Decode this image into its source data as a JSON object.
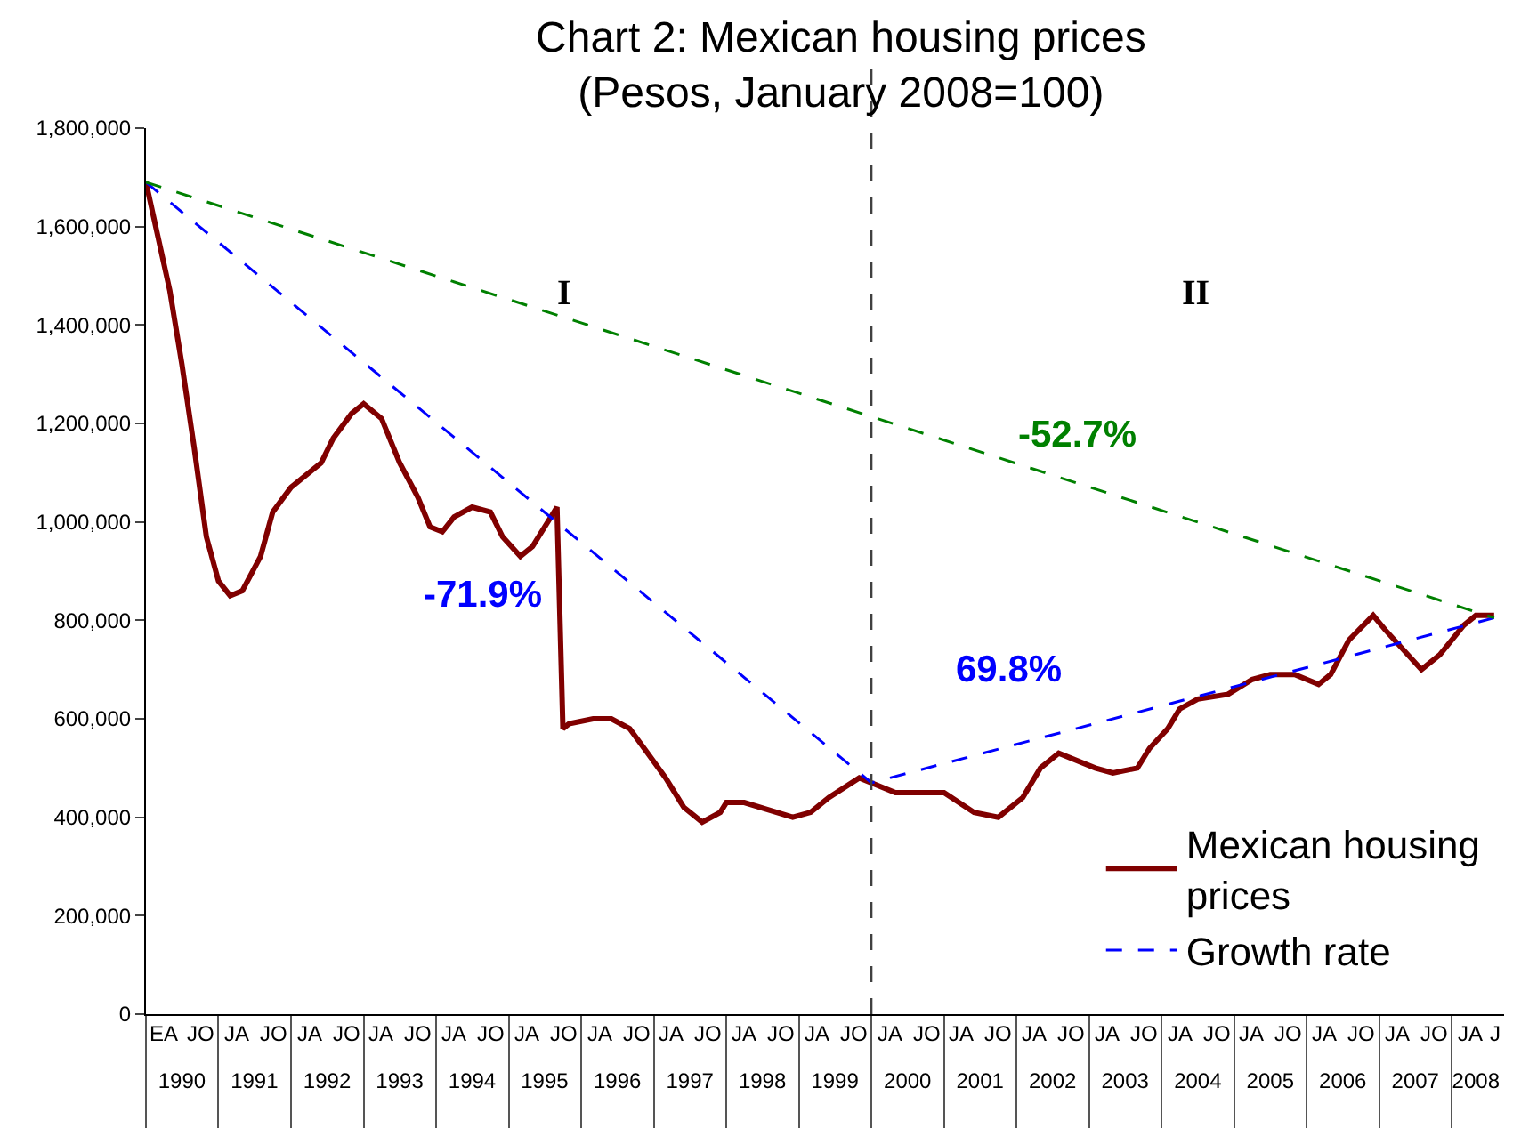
{
  "chart_data": {
    "type": "line",
    "title": "Chart 2: Mexican housing prices",
    "subtitle": "(Pesos, January 2008=100)",
    "x": [
      "1990-01",
      "1990-05",
      "1990-07",
      "1990-09",
      "1990-11",
      "1991-01",
      "1991-03",
      "1991-05",
      "1991-08",
      "1991-10",
      "1992-01",
      "1992-06",
      "1992-08",
      "1992-11",
      "1993-01",
      "1993-04",
      "1993-07",
      "1993-10",
      "1993-12",
      "1994-02",
      "1994-04",
      "1994-07",
      "1994-10",
      "1994-12",
      "1995-03",
      "1995-05",
      "1995-09",
      "1995-10",
      "1995-11",
      "1996-03",
      "1996-06",
      "1996-09",
      "1996-12",
      "1997-03",
      "1997-06",
      "1997-09",
      "1997-12",
      "1998-01",
      "1998-04",
      "1998-12",
      "1999-03",
      "1999-06",
      "1999-11",
      "2000-01",
      "2000-05",
      "2000-08",
      "2001-01",
      "2001-06",
      "2001-10",
      "2002-02",
      "2002-05",
      "2002-08",
      "2003-02",
      "2003-05",
      "2003-09",
      "2003-11",
      "2004-02",
      "2004-04",
      "2004-07",
      "2004-12",
      "2005-04",
      "2005-07",
      "2005-11",
      "2006-03",
      "2006-05",
      "2006-08",
      "2006-12",
      "2007-02",
      "2007-08",
      "2007-11",
      "2008-03",
      "2008-05",
      "2008-08"
    ],
    "series": [
      {
        "name": "Mexican housing prices",
        "color": "#800000",
        "line_style": "solid",
        "values": [
          1690000,
          1470000,
          1320000,
          1150000,
          970000,
          880000,
          850000,
          860000,
          930000,
          1020000,
          1070000,
          1120000,
          1170000,
          1220000,
          1240000,
          1210000,
          1120000,
          1050000,
          990000,
          980000,
          1010000,
          1030000,
          1020000,
          970000,
          930000,
          950000,
          1030000,
          580000,
          590000,
          600000,
          600000,
          580000,
          530000,
          480000,
          420000,
          390000,
          410000,
          430000,
          430000,
          400000,
          410000,
          440000,
          480000,
          470000,
          450000,
          450000,
          450000,
          410000,
          400000,
          440000,
          500000,
          530000,
          500000,
          490000,
          500000,
          540000,
          580000,
          620000,
          640000,
          650000,
          680000,
          690000,
          690000,
          670000,
          690000,
          760000,
          810000,
          780000,
          700000,
          730000,
          790000,
          810000,
          810000
        ]
      },
      {
        "name": "Growth rate",
        "color": "#0000ff",
        "line_style": "dashed",
        "x": [
          "1990-01",
          "2000-01",
          "2008-08"
        ],
        "values": [
          1690000,
          470000,
          805000
        ]
      },
      {
        "color": "#008000",
        "line_style": "dashed",
        "x": [
          "1990-01",
          "2008-08"
        ],
        "values": [
          1690000,
          805000
        ]
      }
    ],
    "xlim": [
      "1990-01-01",
      "2008-09-20"
    ],
    "xticks": [
      {
        "value": "1990-07-01",
        "label": "1990"
      },
      {
        "value": "1991-07-01",
        "label": "1991"
      },
      {
        "value": "1992-07-01",
        "label": "1992"
      },
      {
        "value": "1993-07-01",
        "label": "1993"
      },
      {
        "value": "1994-07-01",
        "label": "1994"
      },
      {
        "value": "1995-07-01",
        "label": "1995"
      },
      {
        "value": "1996-07-01",
        "label": "1996"
      },
      {
        "value": "1997-07-01",
        "label": "1997"
      },
      {
        "value": "1998-07-01",
        "label": "1998"
      },
      {
        "value": "1999-07-01",
        "label": "1999"
      },
      {
        "value": "2000-07-01",
        "label": "2000"
      },
      {
        "value": "2001-07-01",
        "label": "2001"
      },
      {
        "value": "2002-07-01",
        "label": "2002"
      },
      {
        "value": "2003-07-01",
        "label": "2003"
      },
      {
        "value": "2004-07-01",
        "label": "2004"
      },
      {
        "value": "2005-07-01",
        "label": "2005"
      },
      {
        "value": "2006-07-01",
        "label": "2006"
      },
      {
        "value": "2007-07-01",
        "label": "2007"
      },
      {
        "value": "2008-05-01",
        "label": "2008"
      }
    ],
    "ylim": [
      0,
      1800000
    ],
    "yticks": [
      0,
      {
        "value": 200000,
        "label": "200,000"
      },
      {
        "value": 400000,
        "label": "400,000"
      },
      {
        "value": 600000,
        "label": "600,000"
      },
      {
        "value": 800000,
        "label": "800,000"
      },
      {
        "value": 1000000,
        "label": "1,000,000"
      },
      {
        "value": 1200000,
        "label": "1,200,000"
      },
      {
        "value": 1400000,
        "label": "1,400,000"
      },
      {
        "value": 1600000,
        "label": "1,600,000"
      },
      {
        "value": 1800000,
        "label": "1,800,000"
      }
    ],
    "ref_lines": [
      {
        "axis": "x",
        "value": "2000-01",
        "color": "#404040",
        "line_style": "dashed"
      }
    ],
    "annotations": [
      "I",
      "II",
      "-71.9%",
      "69.8%",
      "-52.7%",
      "EA",
      "JO",
      "JA",
      "JO",
      "JA",
      "JO",
      "JA",
      "JO",
      "JA",
      "JO",
      "JA",
      "JO",
      "JA",
      "JO",
      "JA",
      "JO",
      "JA",
      "JO",
      "JA",
      "JO",
      "JA",
      "JO",
      "JA",
      "JO",
      "JA",
      "JO",
      "JA",
      "JO",
      "JA",
      "JO",
      "JA",
      "JO",
      "JA",
      "JO",
      "JA",
      "JO",
      "JA",
      "J"
    ],
    "legend": "bottom right",
    "marker": "none"
  }
}
